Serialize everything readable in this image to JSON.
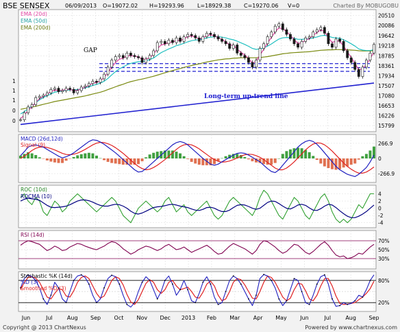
{
  "header": {
    "symbol": "BSE SENSEX",
    "date": "06/09/2013",
    "open": "O=19072.02",
    "high": "H=19293.96",
    "low": "L=18929.38",
    "close": "C=19270.06",
    "volume": "V=0",
    "charted_by": "Charted By MOBUGOBU"
  },
  "footer": {
    "copyright": "Copyright @ 2013 ChartNexus",
    "powered": "Powered by www.chartnexus.com"
  },
  "colors": {
    "price": "#1a1a1a",
    "ema20": "#e040a0",
    "ema50": "#20c0c0",
    "ema200": "#7a8a10",
    "trend": "#2020d0",
    "macd": "#2020c0",
    "signal": "#e02020",
    "hist_up": "#40a040",
    "hist_down": "#e07050",
    "roc": "#30a030",
    "rsi": "#800050",
    "panel_bg": "#ffffff"
  },
  "chart_data": [
    {
      "type": "candlestick",
      "title": "BSE SENSEX",
      "legend": [
        "EMA (20d)",
        "EMA (50d)",
        "EMA (200d)"
      ],
      "y_ticks": [
        "20510",
        "20086",
        "19642",
        "19218",
        "18785",
        "18361",
        "17934",
        "17507",
        "17080",
        "16653",
        "16226",
        "15799"
      ],
      "ylim": [
        15600,
        20700
      ],
      "x_ticks": [
        "Jun",
        "Jul",
        "Aug",
        "Sep",
        "Oct",
        "Nov",
        "Dec",
        "2013",
        "Feb",
        "Mar",
        "Apr",
        "May",
        "Jun",
        "Jul",
        "Aug",
        "Sep"
      ],
      "annotations": [
        "GAP",
        "Long-term up-trend line"
      ],
      "close_series": [
        16050,
        16350,
        16600,
        16700,
        17000,
        17050,
        17100,
        17200,
        17350,
        17400,
        17250,
        17300,
        17400,
        17350,
        17200,
        17300,
        17450,
        17500,
        17600,
        17700,
        17650,
        17800,
        18000,
        18300,
        18600,
        18750,
        18800,
        18700,
        18900,
        18800,
        18750,
        18700,
        18500,
        18650,
        18800,
        19000,
        19350,
        19400,
        19300,
        19450,
        19350,
        19550,
        19400,
        19600,
        19700,
        19650,
        19550,
        19400,
        19600,
        19750,
        19700,
        19600,
        19500,
        19400,
        19300,
        19100,
        19250,
        18900,
        18800,
        18700,
        18500,
        18300,
        18600,
        19100,
        19300,
        19600,
        19800,
        20050,
        20150,
        19900,
        19700,
        19500,
        19300,
        19150,
        19400,
        19550,
        19600,
        19800,
        19900,
        20000,
        19750,
        19300,
        19150,
        19500,
        19400,
        19000,
        18700,
        18500,
        18200,
        17900,
        18300,
        18600,
        18900,
        19270
      ],
      "ema20": [
        16100,
        16250,
        16450,
        16600,
        16800,
        16950,
        17050,
        17150,
        17250,
        17320,
        17300,
        17310,
        17350,
        17350,
        17300,
        17310,
        17380,
        17440,
        17520,
        17610,
        17640,
        17720,
        17860,
        18060,
        18300,
        18500,
        18640,
        18680,
        18780,
        18790,
        18770,
        18740,
        18640,
        18640,
        18710,
        18850,
        19090,
        19250,
        19280,
        19360,
        19360,
        19450,
        19430,
        19510,
        19600,
        19630,
        19590,
        19500,
        19550,
        19650,
        19680,
        19640,
        19570,
        19480,
        19390,
        19240,
        19240,
        19070,
        18930,
        18820,
        18660,
        18480,
        18540,
        18820,
        19060,
        19330,
        19570,
        19810,
        19980,
        19940,
        19820,
        19660,
        19480,
        19310,
        19350,
        19450,
        19520,
        19660,
        19780,
        19890,
        19820,
        19560,
        19350,
        19420,
        19410,
        19200,
        18950,
        18720,
        18460,
        18180,
        18240,
        18420,
        18660,
        18960
      ],
      "ema50": [
        16300,
        16400,
        16520,
        16640,
        16780,
        16900,
        17000,
        17080,
        17160,
        17230,
        17260,
        17280,
        17310,
        17330,
        17330,
        17340,
        17370,
        17410,
        17460,
        17520,
        17560,
        17620,
        17700,
        17820,
        17970,
        18110,
        18230,
        18310,
        18400,
        18460,
        18500,
        18530,
        18540,
        18570,
        18620,
        18690,
        18810,
        18920,
        19000,
        19080,
        19140,
        19220,
        19260,
        19320,
        19380,
        19430,
        19460,
        19470,
        19500,
        19550,
        19580,
        19600,
        19600,
        19580,
        19550,
        19500,
        19470,
        19410,
        19340,
        19270,
        19190,
        19100,
        19060,
        19080,
        19120,
        19200,
        19290,
        19400,
        19500,
        19550,
        19570,
        19560,
        19530,
        19490,
        19490,
        19500,
        19510,
        19550,
        19590,
        19640,
        19660,
        19620,
        19570,
        19550,
        19530,
        19470,
        19390,
        19300,
        19200,
        19080,
        19030,
        19010,
        19010,
        19050
      ],
      "ema200": [
        16500,
        16530,
        16560,
        16590,
        16630,
        16670,
        16710,
        16750,
        16790,
        16830,
        16860,
        16890,
        16920,
        16950,
        16980,
        17010,
        17040,
        17070,
        17110,
        17150,
        17190,
        17230,
        17280,
        17340,
        17400,
        17460,
        17520,
        17570,
        17630,
        17680,
        17720,
        17760,
        17790,
        17830,
        17870,
        17910,
        17960,
        18010,
        18060,
        18110,
        18150,
        18200,
        18240,
        18290,
        18330,
        18370,
        18410,
        18440,
        18480,
        18520,
        18550,
        18580,
        18610,
        18630,
        18650,
        18660,
        18680,
        18690,
        18700,
        18700,
        18700,
        18700,
        18700,
        18710,
        18730,
        18750,
        18780,
        18810,
        18840,
        18870,
        18890,
        18910,
        18920,
        18930,
        18940,
        18950,
        18960,
        18980,
        19000,
        19020,
        19030,
        19040,
        19040,
        19050,
        19050,
        19050,
        19040,
        19030,
        19020,
        19000,
        18990,
        18990,
        18990,
        19000
      ],
      "gap_lines": [
        18450,
        18280,
        18120
      ],
      "trend_line": {
        "start": 15850,
        "end": 17620
      }
    },
    {
      "type": "line",
      "title": "MACD (26d,12d)",
      "legend": [
        "MACD (26d,12d)",
        "Signal (9)"
      ],
      "y_ticks": [
        "266.9",
        "0",
        "-266.9"
      ],
      "ylim": [
        -400,
        400
      ],
      "macd": [
        50,
        120,
        200,
        230,
        240,
        220,
        200,
        160,
        120,
        80,
        40,
        10,
        30,
        60,
        100,
        150,
        200,
        250,
        300,
        330,
        320,
        290,
        250,
        200,
        150,
        100,
        40,
        -20,
        -80,
        -140,
        -200,
        -240,
        -230,
        -180,
        -120,
        -60,
        0,
        60,
        120,
        180,
        240,
        280,
        300,
        280,
        240,
        180,
        120,
        60,
        0,
        -50,
        -100,
        -120,
        -100,
        -60,
        -20,
        20,
        60,
        90,
        100,
        90,
        60,
        20,
        -20,
        -60,
        -120,
        -180,
        -230,
        -250,
        -200,
        -120,
        -40,
        40,
        120,
        200,
        260,
        300,
        320,
        300,
        250,
        180,
        100,
        20,
        -60,
        -140,
        -200,
        -240,
        -280,
        -300,
        -320,
        -280,
        -220,
        -160,
        -60,
        60
      ],
      "signal": [
        0,
        40,
        90,
        140,
        180,
        200,
        205,
        195,
        175,
        150,
        120,
        90,
        70,
        65,
        75,
        95,
        125,
        160,
        200,
        240,
        270,
        285,
        280,
        260,
        230,
        190,
        140,
        90,
        30,
        -30,
        -90,
        -140,
        -180,
        -200,
        -190,
        -160,
        -120,
        -70,
        -20,
        40,
        100,
        160,
        210,
        240,
        250,
        240,
        210,
        170,
        120,
        70,
        20,
        -20,
        -50,
        -65,
        -60,
        -45,
        -20,
        10,
        40,
        65,
        75,
        70,
        50,
        20,
        -20,
        -70,
        -120,
        -170,
        -200,
        -200,
        -170,
        -120,
        -60,
        10,
        80,
        150,
        210,
        255,
        275,
        270,
        240,
        190,
        130,
        60,
        -10,
        -80,
        -140,
        -190,
        -230,
        -260,
        -260,
        -240,
        -200,
        -150
      ]
    },
    {
      "type": "line",
      "title": "ROC (10d)",
      "legend": [
        "ROC (10d)",
        "ROCMA (10)"
      ],
      "y_ticks": [
        "4",
        "2",
        "0",
        "-2",
        "-4"
      ],
      "ylim": [
        -5,
        6
      ],
      "roc": [
        3,
        4,
        2,
        1,
        3,
        2,
        -1,
        -2,
        0,
        2,
        1,
        -1,
        0,
        2,
        3,
        4,
        3,
        2,
        1,
        0,
        -1,
        0,
        1,
        2,
        3,
        2,
        0,
        -2,
        -3,
        -4,
        -2,
        0,
        1,
        2,
        1,
        0,
        -1,
        0,
        2,
        3,
        1,
        -1,
        0,
        1,
        -1,
        -2,
        -1,
        0,
        1,
        2,
        0,
        -2,
        -3,
        -2,
        0,
        2,
        3,
        2,
        1,
        0,
        -1,
        -2,
        0,
        3,
        5,
        4,
        2,
        0,
        -2,
        -3,
        -1,
        1,
        3,
        2,
        0,
        -2,
        -3,
        -1,
        1,
        3,
        4,
        2,
        -1,
        -3,
        -4,
        -3,
        -4,
        -3,
        -1,
        1,
        0,
        2,
        4,
        4
      ],
      "rocma": [
        2,
        2.5,
        2.8,
        2.6,
        2.5,
        2.2,
        1.5,
        0.8,
        0.3,
        0.2,
        0.3,
        0.4,
        0.6,
        1,
        1.5,
        2,
        2.3,
        2.3,
        2.1,
        1.7,
        1.2,
        0.8,
        0.6,
        0.6,
        0.9,
        1.1,
        1,
        0.6,
        0,
        -0.8,
        -1.4,
        -1.6,
        -1.3,
        -0.8,
        -0.3,
        0.2,
        0.4,
        0.5,
        0.7,
        1,
        1.1,
        0.9,
        0.6,
        0.4,
        0.2,
        -0.2,
        -0.5,
        -0.6,
        -0.3,
        0.2,
        0.3,
        0,
        -0.5,
        -0.9,
        -0.9,
        -0.5,
        0.2,
        0.8,
        1,
        0.9,
        0.5,
        0,
        -0.3,
        0,
        0.8,
        1.6,
        2,
        1.9,
        1.3,
        0.6,
        0,
        -0.2,
        0.3,
        0.9,
        1.1,
        0.8,
        0.1,
        -0.5,
        -0.6,
        -0.1,
        0.6,
        1.1,
        0.9,
        0.2,
        -0.7,
        -1.5,
        -2.2,
        -2.6,
        -2.6,
        -2.2,
        -1.6,
        -0.9,
        0,
        0.9
      ]
    },
    {
      "type": "line",
      "title": "RSI (14d)",
      "y_ticks": [
        "70%",
        "50%",
        "30%"
      ],
      "ylim": [
        10,
        90
      ],
      "rsi": [
        60,
        66,
        70,
        68,
        65,
        62,
        55,
        48,
        52,
        58,
        54,
        48,
        50,
        56,
        60,
        64,
        62,
        58,
        55,
        52,
        50,
        54,
        58,
        64,
        68,
        66,
        60,
        52,
        46,
        40,
        44,
        50,
        54,
        58,
        56,
        52,
        48,
        52,
        58,
        62,
        56,
        50,
        52,
        56,
        50,
        44,
        48,
        52,
        56,
        60,
        54,
        46,
        40,
        42,
        50,
        58,
        64,
        60,
        56,
        52,
        46,
        40,
        48,
        62,
        70,
        68,
        62,
        56,
        48,
        42,
        46,
        54,
        62,
        60,
        52,
        44,
        40,
        46,
        54,
        62,
        68,
        60,
        48,
        38,
        34,
        36,
        30,
        32,
        36,
        42,
        40,
        48,
        56,
        62
      ]
    },
    {
      "type": "line",
      "title": "Stochastic %K (14d)",
      "legend": [
        "Stochastic %K (14d)",
        "%D (3)",
        "Smoothed %D (3)"
      ],
      "y_ticks": [
        "80%",
        "20%"
      ],
      "ylim": [
        0,
        100
      ],
      "k": [
        60,
        85,
        95,
        90,
        80,
        60,
        30,
        15,
        40,
        75,
        60,
        30,
        20,
        50,
        80,
        92,
        95,
        88,
        70,
        40,
        20,
        30,
        60,
        85,
        94,
        90,
        70,
        40,
        15,
        8,
        20,
        50,
        75,
        90,
        80,
        55,
        30,
        50,
        80,
        92,
        70,
        40,
        55,
        80,
        55,
        25,
        20,
        45,
        75,
        90,
        70,
        35,
        15,
        20,
        50,
        80,
        92,
        85,
        70,
        50,
        30,
        12,
        40,
        85,
        96,
        92,
        80,
        60,
        30,
        12,
        25,
        55,
        85,
        80,
        50,
        20,
        15,
        40,
        70,
        90,
        95,
        70,
        30,
        10,
        12,
        20,
        15,
        18,
        25,
        40,
        35,
        55,
        80,
        95
      ],
      "d": [
        55,
        75,
        88,
        90,
        86,
        75,
        55,
        35,
        30,
        45,
        58,
        55,
        38,
        35,
        52,
        75,
        88,
        92,
        85,
        65,
        45,
        32,
        38,
        58,
        80,
        90,
        85,
        68,
        42,
        22,
        15,
        28,
        50,
        72,
        82,
        75,
        55,
        45,
        55,
        75,
        80,
        65,
        55,
        58,
        62,
        50,
        35,
        32,
        48,
        70,
        78,
        65,
        40,
        25,
        30,
        50,
        75,
        85,
        82,
        68,
        50,
        32,
        30,
        50,
        75,
        92,
        88,
        75,
        55,
        35,
        25,
        32,
        55,
        72,
        70,
        52,
        30,
        25,
        40,
        65,
        85,
        85,
        65,
        38,
        18,
        15,
        16,
        18,
        20,
        28,
        35,
        45,
        58,
        78
      ]
    }
  ],
  "x_axis": [
    "Jun",
    "Jul",
    "Aug",
    "Sep",
    "Oct",
    "Nov",
    "Dec",
    "2013",
    "Feb",
    "Mar",
    "Apr",
    "May",
    "Jun",
    "Jul",
    "Aug",
    "Sep"
  ]
}
